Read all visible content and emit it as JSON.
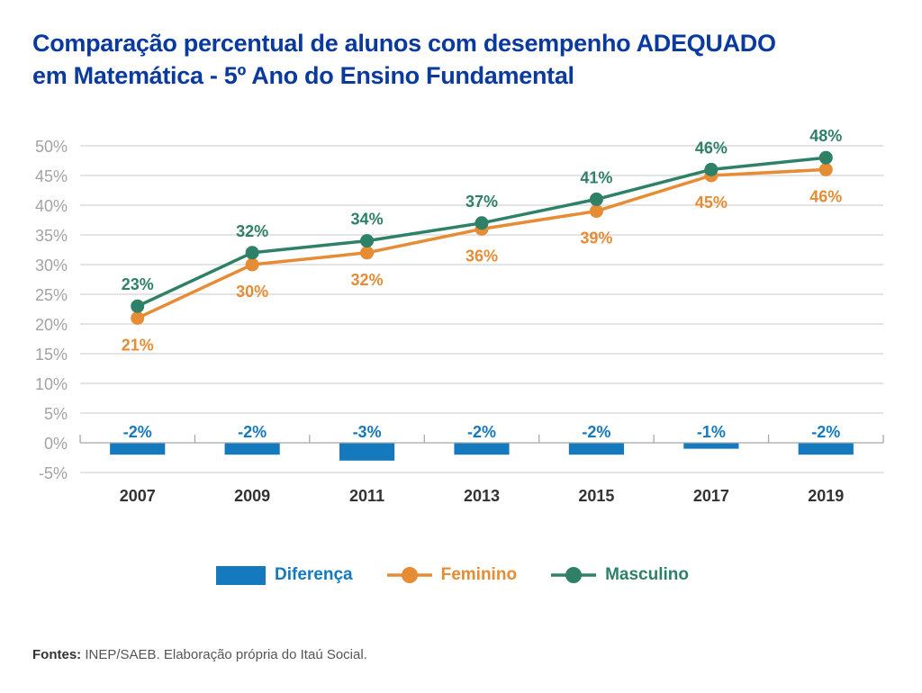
{
  "title_lines": [
    "Comparação percentual de alunos com desempenho ADEQUADO",
    "em Matemática - 5º Ano do Ensino Fundamental"
  ],
  "colors": {
    "title": "#0b3a9e",
    "diferenca": "#1479bd",
    "feminino": "#e58c35",
    "masculino": "#2e8066",
    "grid": "#d4d4d4",
    "axis": "#a8a8a8"
  },
  "chart_data": {
    "type": "line+bar",
    "title": "Comparação percentual de alunos com desempenho ADEQUADO em Matemática - 5º Ano do Ensino Fundamental",
    "xlabel": "",
    "ylabel": "",
    "categories": [
      "2007",
      "2009",
      "2011",
      "2013",
      "2015",
      "2017",
      "2019"
    ],
    "ylim": [
      -5,
      50
    ],
    "yticks": [
      50,
      45,
      40,
      35,
      30,
      25,
      20,
      15,
      10,
      5,
      0,
      -5
    ],
    "ytick_labels": [
      "50%",
      "45%",
      "40%",
      "35%",
      "30%",
      "25%",
      "20%",
      "15%",
      "10%",
      "5%",
      "0%",
      "-5%"
    ],
    "grid": true,
    "legend_position": "bottom",
    "series": [
      {
        "name": "Diferença",
        "type": "bar",
        "values": [
          -2,
          -2,
          -3,
          -2,
          -2,
          -1,
          -2
        ],
        "labels": [
          "-2%",
          "-2%",
          "-3%",
          "-2%",
          "-2%",
          "-1%",
          "-2%"
        ]
      },
      {
        "name": "Feminino",
        "type": "line",
        "values": [
          21,
          30,
          32,
          36,
          39,
          45,
          46
        ],
        "labels": [
          "21%",
          "30%",
          "32%",
          "36%",
          "39%",
          "45%",
          "46%"
        ]
      },
      {
        "name": "Masculino",
        "type": "line",
        "values": [
          23,
          32,
          34,
          37,
          41,
          46,
          48
        ],
        "labels": [
          "23%",
          "32%",
          "34%",
          "37%",
          "41%",
          "46%",
          "48%"
        ]
      }
    ]
  },
  "legend": {
    "diferenca": "Diferença",
    "feminino": "Feminino",
    "masculino": "Masculino"
  },
  "footer": {
    "label": "Fontes:",
    "text": " INEP/SAEB. Elaboração própria do Itaú Social."
  }
}
